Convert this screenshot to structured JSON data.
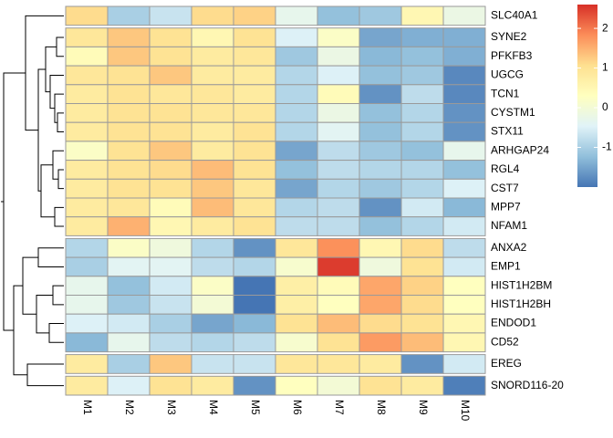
{
  "chart_data": {
    "type": "heatmap",
    "rows": [
      "SLC40A1",
      "SYNE2",
      "PFKFB3",
      "UGCG",
      "TCN1",
      "CYSTM1",
      "STX11",
      "ARHGAP24",
      "RGL4",
      "CST7",
      "MPP7",
      "NFAM1",
      "ANXA2",
      "EMP1",
      "HIST1H2BM",
      "HIST1H2BH",
      "ENDOD1",
      "CD52",
      "EREG",
      "SNORD116-20"
    ],
    "columns": [
      "M1",
      "M2",
      "M3",
      "M4",
      "M5",
      "M6",
      "M7",
      "M8",
      "M9",
      "M10"
    ],
    "values": [
      [
        1.1,
        -1.0,
        -0.7,
        1.1,
        1.2,
        -0.3,
        -1.2,
        -1.1,
        0.5,
        -0.2
      ],
      [
        0.9,
        1.3,
        1.0,
        0.5,
        1.0,
        -0.5,
        0.2,
        -1.5,
        -1.4,
        -1.4
      ],
      [
        0.4,
        1.3,
        1.0,
        0.8,
        0.9,
        -1.1,
        -0.2,
        -1.3,
        -1.2,
        -1.4
      ],
      [
        0.9,
        1.0,
        1.3,
        0.8,
        0.8,
        -0.9,
        -0.5,
        -1.2,
        -1.1,
        -1.8
      ],
      [
        0.8,
        1.0,
        0.9,
        0.9,
        0.8,
        -0.9,
        0.4,
        -1.7,
        -0.8,
        -1.8
      ],
      [
        0.8,
        1.0,
        1.0,
        0.9,
        0.9,
        -0.9,
        -0.2,
        -1.2,
        -0.9,
        -1.7
      ],
      [
        0.8,
        1.0,
        1.0,
        0.8,
        1.0,
        -0.9,
        -0.4,
        -1.2,
        -0.9,
        -1.7
      ],
      [
        0.2,
        1.0,
        1.3,
        0.8,
        1.0,
        -1.5,
        -0.8,
        -1.1,
        -1.2,
        -0.3
      ],
      [
        0.8,
        1.0,
        1.1,
        1.4,
        1.0,
        -1.2,
        -0.8,
        -0.9,
        -0.9,
        -1.2
      ],
      [
        0.8,
        1.0,
        1.0,
        1.3,
        0.9,
        -1.5,
        -0.9,
        -1.1,
        -0.9,
        -0.5
      ],
      [
        0.8,
        0.9,
        0.4,
        1.4,
        0.9,
        -0.9,
        -0.8,
        -1.7,
        -0.6,
        -1.3
      ],
      [
        0.8,
        1.5,
        0.5,
        0.8,
        1.0,
        -0.8,
        -0.8,
        -1.2,
        -0.9,
        -0.6
      ],
      [
        -0.9,
        0.2,
        -0.1,
        -0.9,
        -1.7,
        0.9,
        1.8,
        0.5,
        1.1,
        -0.8
      ],
      [
        -1.0,
        -0.4,
        -0.4,
        -0.8,
        -0.9,
        0.1,
        2.5,
        -0.1,
        1.0,
        -0.6
      ],
      [
        -0.3,
        -1.2,
        -0.6,
        0.2,
        -2.0,
        0.7,
        0.4,
        1.6,
        1.2,
        0.3
      ],
      [
        -0.3,
        -1.1,
        -0.7,
        0.0,
        -2.0,
        0.7,
        0.3,
        1.6,
        1.1,
        0.3
      ],
      [
        -0.5,
        -0.6,
        -1.0,
        -1.5,
        -1.3,
        1.0,
        1.4,
        1.1,
        1.0,
        0.5
      ],
      [
        -1.3,
        -0.3,
        -0.8,
        -0.9,
        -0.8,
        0.1,
        1.0,
        1.7,
        1.4,
        0.5
      ],
      [
        0.8,
        -1.0,
        1.3,
        -0.7,
        -0.7,
        0.9,
        0.9,
        0.8,
        -1.7,
        -0.6
      ],
      [
        0.8,
        -0.5,
        1.0,
        0.8,
        -1.7,
        0.3,
        0.0,
        1.0,
        0.8,
        -1.9
      ]
    ],
    "colors": [
      "#4575b4",
      "#91bfdb",
      "#e0f3f8",
      "#ffffbf",
      "#fee090",
      "#fc8d59",
      "#d73027"
    ],
    "zlim": [
      -2,
      2.6
    ],
    "colorbar_ticks": [
      -1,
      0,
      1,
      2
    ]
  }
}
